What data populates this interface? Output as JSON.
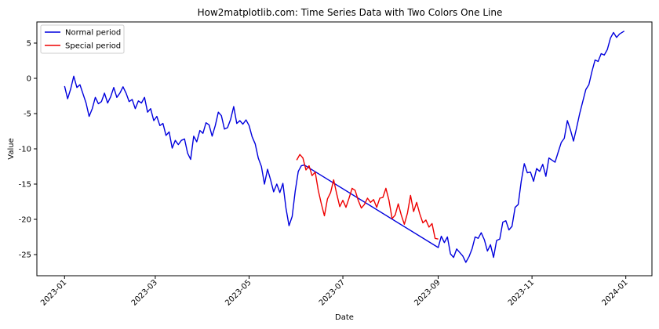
{
  "chart_data": {
    "type": "line",
    "title": "How2matplotlib.com: Time Series Data with Two Colors One Line",
    "xlabel": "Date",
    "ylabel": "Value",
    "xlim": [
      "2022-12-14",
      "2024-01-18"
    ],
    "ylim": [
      -28,
      8
    ],
    "x_ticks": [
      "2023-01",
      "2023-03",
      "2023-05",
      "2023-07",
      "2023-09",
      "2023-11",
      "2024-01"
    ],
    "y_ticks": [
      5,
      0,
      -5,
      -10,
      -15,
      -20,
      -25
    ],
    "y_tick_labels": [
      "5",
      "0",
      "-5",
      "-10",
      "-15",
      "-20",
      "-25"
    ],
    "grid": false,
    "legend_position": "top-left",
    "series": [
      {
        "name": "Normal period",
        "color": "#0000dd",
        "points": [
          [
            "2023-01-01",
            -1.1
          ],
          [
            "2023-01-03",
            -2.9
          ],
          [
            "2023-01-05",
            -1.5
          ],
          [
            "2023-01-07",
            0.3
          ],
          [
            "2023-01-09",
            -1.3
          ],
          [
            "2023-01-11",
            -0.9
          ],
          [
            "2023-01-13",
            -2.2
          ],
          [
            "2023-01-15",
            -3.5
          ],
          [
            "2023-01-17",
            -5.4
          ],
          [
            "2023-01-19",
            -4.3
          ],
          [
            "2023-01-21",
            -2.7
          ],
          [
            "2023-01-23",
            -3.6
          ],
          [
            "2023-01-25",
            -3.3
          ],
          [
            "2023-01-27",
            -2.1
          ],
          [
            "2023-01-29",
            -3.5
          ],
          [
            "2023-01-31",
            -2.6
          ],
          [
            "2023-02-02",
            -1.3
          ],
          [
            "2023-02-04",
            -2.7
          ],
          [
            "2023-02-06",
            -2.1
          ],
          [
            "2023-02-08",
            -1.2
          ],
          [
            "2023-02-10",
            -2.1
          ],
          [
            "2023-02-12",
            -3.3
          ],
          [
            "2023-02-14",
            -3.0
          ],
          [
            "2023-02-16",
            -4.3
          ],
          [
            "2023-02-18",
            -3.2
          ],
          [
            "2023-02-20",
            -3.5
          ],
          [
            "2023-02-22",
            -2.7
          ],
          [
            "2023-02-24",
            -4.8
          ],
          [
            "2023-02-26",
            -4.3
          ],
          [
            "2023-02-28",
            -6.0
          ],
          [
            "2023-03-02",
            -5.4
          ],
          [
            "2023-03-04",
            -6.7
          ],
          [
            "2023-03-06",
            -6.4
          ],
          [
            "2023-03-08",
            -8.1
          ],
          [
            "2023-03-10",
            -7.6
          ],
          [
            "2023-03-12",
            -9.9
          ],
          [
            "2023-03-14",
            -8.8
          ],
          [
            "2023-03-16",
            -9.4
          ],
          [
            "2023-03-18",
            -8.8
          ],
          [
            "2023-03-20",
            -8.6
          ],
          [
            "2023-03-22",
            -10.6
          ],
          [
            "2023-03-24",
            -11.5
          ],
          [
            "2023-03-26",
            -8.2
          ],
          [
            "2023-03-28",
            -9.0
          ],
          [
            "2023-03-30",
            -7.4
          ],
          [
            "2023-04-01",
            -7.8
          ],
          [
            "2023-04-03",
            -6.3
          ],
          [
            "2023-04-05",
            -6.6
          ],
          [
            "2023-04-07",
            -8.2
          ],
          [
            "2023-04-09",
            -6.7
          ],
          [
            "2023-04-11",
            -4.8
          ],
          [
            "2023-04-13",
            -5.3
          ],
          [
            "2023-04-15",
            -7.2
          ],
          [
            "2023-04-17",
            -7.0
          ],
          [
            "2023-04-19",
            -5.8
          ],
          [
            "2023-04-21",
            -4.0
          ],
          [
            "2023-04-23",
            -6.4
          ],
          [
            "2023-04-25",
            -6.0
          ],
          [
            "2023-04-27",
            -6.5
          ],
          [
            "2023-04-29",
            -5.9
          ],
          [
            "2023-05-01",
            -6.7
          ],
          [
            "2023-05-03",
            -8.3
          ],
          [
            "2023-05-05",
            -9.3
          ],
          [
            "2023-05-07",
            -11.3
          ],
          [
            "2023-05-09",
            -12.5
          ],
          [
            "2023-05-11",
            -15.0
          ],
          [
            "2023-05-13",
            -12.9
          ],
          [
            "2023-05-15",
            -14.4
          ],
          [
            "2023-05-17",
            -16.1
          ],
          [
            "2023-05-19",
            -15.0
          ],
          [
            "2023-05-21",
            -16.2
          ],
          [
            "2023-05-23",
            -14.9
          ],
          [
            "2023-05-25",
            -18.4
          ],
          [
            "2023-05-27",
            -20.9
          ],
          [
            "2023-05-29",
            -19.6
          ],
          [
            "2023-05-31",
            -16.0
          ],
          [
            "2023-06-02",
            -13.2
          ],
          [
            "2023-06-04",
            -12.4
          ],
          [
            "2023-06-06",
            -12.3
          ],
          [
            "2023-09-01",
            -24.0
          ],
          [
            "2023-09-03",
            -22.4
          ],
          [
            "2023-09-05",
            -23.3
          ],
          [
            "2023-09-07",
            -22.5
          ],
          [
            "2023-09-09",
            -24.9
          ],
          [
            "2023-09-11",
            -25.4
          ],
          [
            "2023-09-13",
            -24.2
          ],
          [
            "2023-09-15",
            -24.7
          ],
          [
            "2023-09-17",
            -25.2
          ],
          [
            "2023-09-19",
            -26.1
          ],
          [
            "2023-09-21",
            -25.3
          ],
          [
            "2023-09-23",
            -24.2
          ],
          [
            "2023-09-25",
            -22.5
          ],
          [
            "2023-09-27",
            -22.7
          ],
          [
            "2023-09-29",
            -21.9
          ],
          [
            "2023-10-01",
            -22.9
          ],
          [
            "2023-10-03",
            -24.5
          ],
          [
            "2023-10-05",
            -23.6
          ],
          [
            "2023-10-07",
            -25.4
          ],
          [
            "2023-10-09",
            -23.0
          ],
          [
            "2023-10-11",
            -22.8
          ],
          [
            "2023-10-13",
            -20.4
          ],
          [
            "2023-10-15",
            -20.2
          ],
          [
            "2023-10-17",
            -21.5
          ],
          [
            "2023-10-19",
            -21.0
          ],
          [
            "2023-10-21",
            -18.3
          ],
          [
            "2023-10-23",
            -17.9
          ],
          [
            "2023-10-25",
            -14.6
          ],
          [
            "2023-10-27",
            -12.1
          ],
          [
            "2023-10-29",
            -13.4
          ],
          [
            "2023-10-31",
            -13.3
          ],
          [
            "2023-11-02",
            -14.6
          ],
          [
            "2023-11-04",
            -12.8
          ],
          [
            "2023-11-06",
            -13.2
          ],
          [
            "2023-11-08",
            -12.2
          ],
          [
            "2023-11-10",
            -13.9
          ],
          [
            "2023-11-12",
            -11.3
          ],
          [
            "2023-11-14",
            -11.6
          ],
          [
            "2023-11-16",
            -11.9
          ],
          [
            "2023-11-18",
            -10.5
          ],
          [
            "2023-11-20",
            -9.1
          ],
          [
            "2023-11-22",
            -8.5
          ],
          [
            "2023-11-24",
            -6.0
          ],
          [
            "2023-11-26",
            -7.3
          ],
          [
            "2023-11-28",
            -8.9
          ],
          [
            "2023-11-30",
            -7.0
          ],
          [
            "2023-12-02",
            -5.0
          ],
          [
            "2023-12-04",
            -3.3
          ],
          [
            "2023-12-06",
            -1.6
          ],
          [
            "2023-12-08",
            -0.9
          ],
          [
            "2023-12-10",
            1.0
          ],
          [
            "2023-12-12",
            2.6
          ],
          [
            "2023-12-14",
            2.4
          ],
          [
            "2023-12-16",
            3.5
          ],
          [
            "2023-12-18",
            3.3
          ],
          [
            "2023-12-20",
            4.1
          ],
          [
            "2023-12-22",
            5.7
          ],
          [
            "2023-12-24",
            6.5
          ],
          [
            "2023-12-26",
            5.8
          ],
          [
            "2023-12-28",
            6.3
          ],
          [
            "2023-12-31",
            6.7
          ]
        ]
      },
      {
        "name": "Special period",
        "color": "#ee0000",
        "points": [
          [
            "2023-06-01",
            -11.6
          ],
          [
            "2023-06-03",
            -10.8
          ],
          [
            "2023-06-05",
            -11.3
          ],
          [
            "2023-06-07",
            -13.0
          ],
          [
            "2023-06-09",
            -12.4
          ],
          [
            "2023-06-11",
            -13.8
          ],
          [
            "2023-06-13",
            -13.3
          ],
          [
            "2023-06-15",
            -15.9
          ],
          [
            "2023-06-17",
            -17.8
          ],
          [
            "2023-06-19",
            -19.5
          ],
          [
            "2023-06-21",
            -17.1
          ],
          [
            "2023-06-23",
            -16.2
          ],
          [
            "2023-06-25",
            -14.4
          ],
          [
            "2023-06-27",
            -16.4
          ],
          [
            "2023-06-29",
            -18.2
          ],
          [
            "2023-07-01",
            -17.3
          ],
          [
            "2023-07-03",
            -18.3
          ],
          [
            "2023-07-05",
            -17.0
          ],
          [
            "2023-07-07",
            -15.6
          ],
          [
            "2023-07-09",
            -15.9
          ],
          [
            "2023-07-11",
            -17.3
          ],
          [
            "2023-07-13",
            -18.4
          ],
          [
            "2023-07-15",
            -17.9
          ],
          [
            "2023-07-17",
            -17.0
          ],
          [
            "2023-07-19",
            -17.6
          ],
          [
            "2023-07-21",
            -17.2
          ],
          [
            "2023-07-23",
            -18.3
          ],
          [
            "2023-07-25",
            -17.0
          ],
          [
            "2023-07-27",
            -16.9
          ],
          [
            "2023-07-29",
            -15.6
          ],
          [
            "2023-07-31",
            -17.3
          ],
          [
            "2023-08-02",
            -19.9
          ],
          [
            "2023-08-04",
            -19.4
          ],
          [
            "2023-08-06",
            -17.8
          ],
          [
            "2023-08-08",
            -19.4
          ],
          [
            "2023-08-10",
            -20.7
          ],
          [
            "2023-08-12",
            -19.1
          ],
          [
            "2023-08-14",
            -16.6
          ],
          [
            "2023-08-16",
            -18.9
          ],
          [
            "2023-08-18",
            -17.6
          ],
          [
            "2023-08-20",
            -19.2
          ],
          [
            "2023-08-22",
            -20.5
          ],
          [
            "2023-08-24",
            -20.1
          ],
          [
            "2023-08-26",
            -21.1
          ],
          [
            "2023-08-28",
            -20.6
          ],
          [
            "2023-08-30",
            -22.7
          ],
          [
            "2023-09-01",
            -22.8
          ]
        ]
      }
    ]
  }
}
